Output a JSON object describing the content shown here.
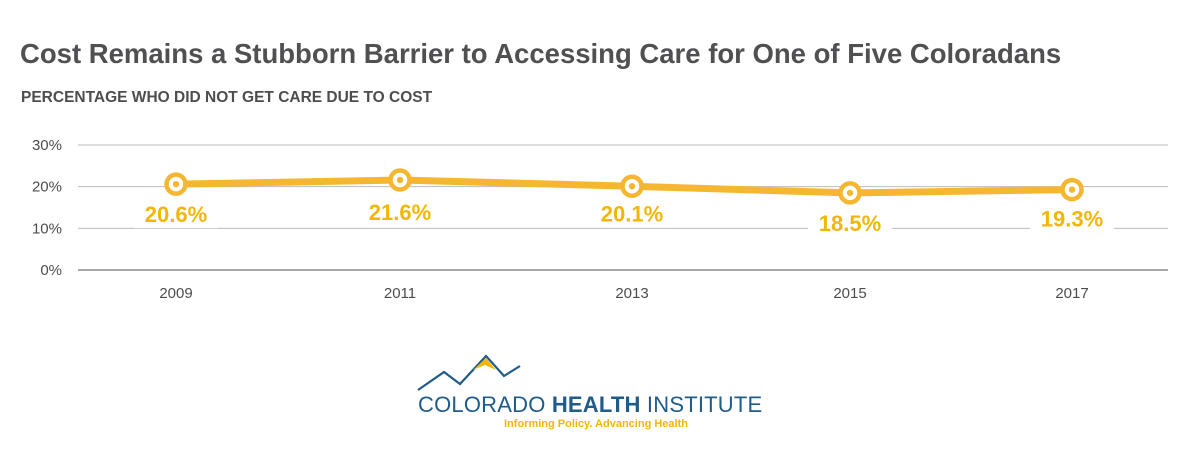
{
  "header": {
    "title": "Cost Remains a Stubborn Barrier to Accessing Care for One of Five Coloradans",
    "subtitle": "PERCENTAGE WHO DID NOT GET CARE DUE TO COST"
  },
  "chart_data": {
    "type": "line",
    "title": "Cost Remains a Stubborn Barrier to Accessing Care for One of Five Coloradans",
    "subtitle": "PERCENTAGE WHO DID NOT GET CARE DUE TO COST",
    "xlabel": "",
    "ylabel": "",
    "x": [
      "2009",
      "2011",
      "2013",
      "2015",
      "2017"
    ],
    "series": [
      {
        "values": [
          20.6,
          21.6,
          20.1,
          18.5,
          19.3
        ],
        "labels": [
          "20.6%",
          "21.6%",
          "20.1%",
          "18.5%",
          "19.3%"
        ]
      }
    ],
    "yticks": [
      "0%",
      "10%",
      "20%",
      "30%"
    ],
    "ylim": [
      0,
      30
    ],
    "grid": true,
    "legend": "none",
    "colors": {
      "line": "#f5b731",
      "grid": "#bdbdbd",
      "axis": "#8c8c8c",
      "label": "#f2b705"
    }
  },
  "logo": {
    "name_regular_1": "COLORADO ",
    "name_bold": "HEALTH",
    "name_regular_2": " INSTITUTE",
    "tagline": "Informing Policy. Advancing Health",
    "colors": {
      "primary": "#1f5c8a",
      "accent": "#f2b705"
    }
  }
}
